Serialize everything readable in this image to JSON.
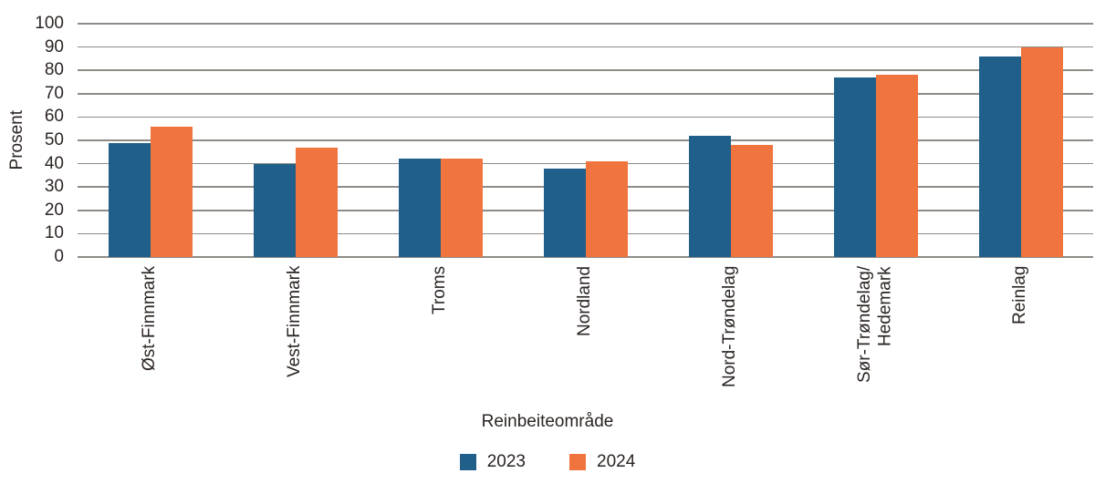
{
  "chart_data": {
    "type": "bar",
    "title": "",
    "xlabel": "Reinbeiteområde",
    "ylabel": "Prosent",
    "ylim": [
      0,
      100
    ],
    "yticks": [
      0,
      10,
      20,
      30,
      40,
      50,
      60,
      70,
      80,
      90,
      100
    ],
    "grid": "horizontal",
    "legend_position": "bottom-center",
    "categories": [
      "Øst-Finnmark",
      "Vest-Finnmark",
      "Troms",
      "Nordland",
      "Nord-Trøndelag",
      "Sør-Trøndelag/\nHedemark",
      "Reinlag"
    ],
    "series": [
      {
        "name": "2023",
        "color": "#1f5f8a",
        "values": [
          49,
          40,
          42,
          38,
          52,
          77,
          86
        ]
      },
      {
        "name": "2024",
        "color": "#f0743e",
        "values": [
          56,
          47,
          42,
          41,
          48,
          78,
          90
        ]
      }
    ]
  },
  "style": {
    "text_color": "#2b2523",
    "gridline_color": "#8f8c87",
    "background": "#ffffff"
  }
}
